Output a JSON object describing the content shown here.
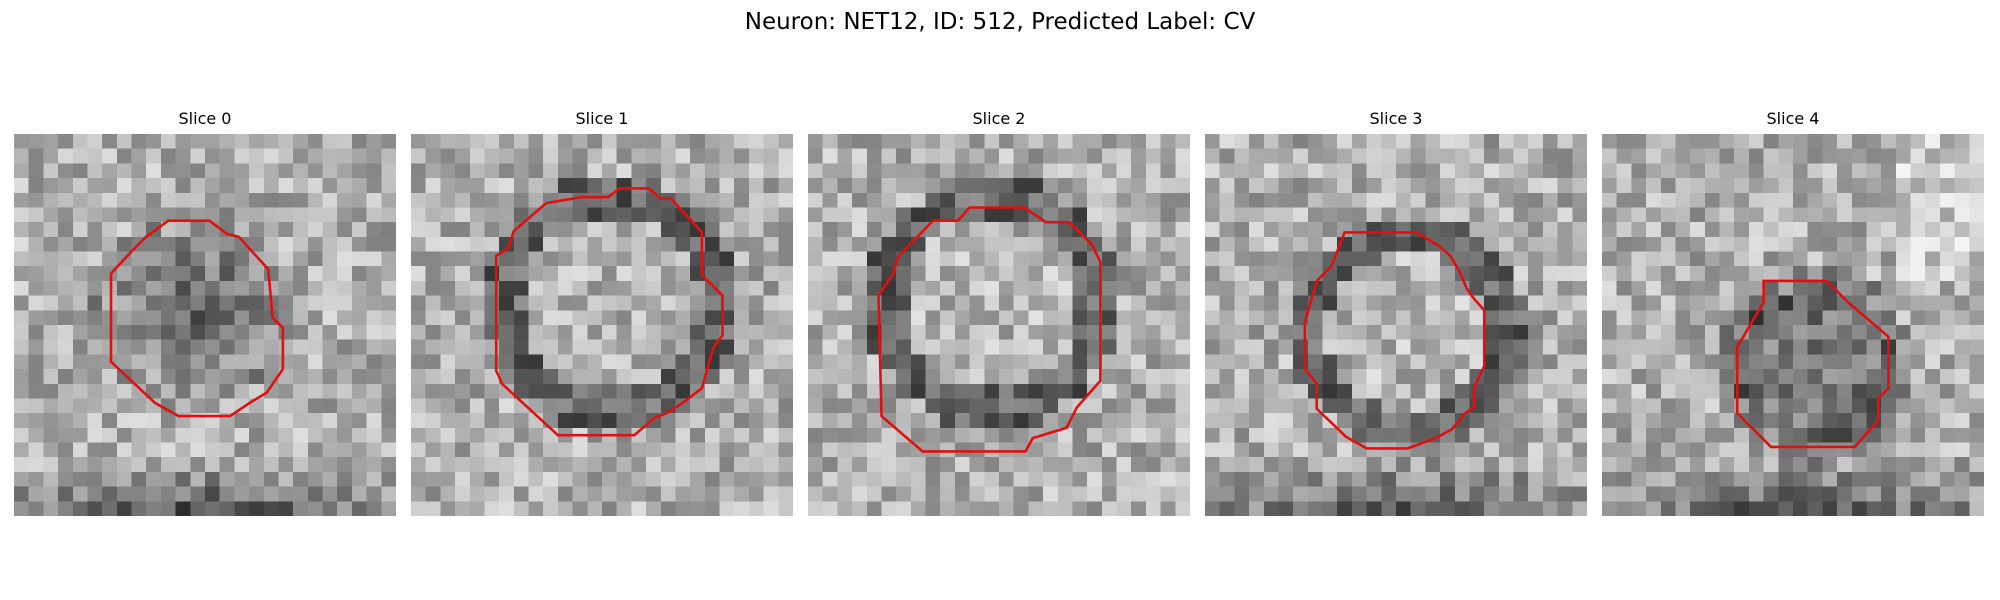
{
  "figure": {
    "title": "Neuron: NET12, ID: 512, Predicted Label: CV"
  },
  "panels": [
    {
      "title": "Slice 0",
      "outline_color": "#e01010"
    },
    {
      "title": "Slice 1",
      "outline_color": "#e01010"
    },
    {
      "title": "Slice 2",
      "outline_color": "#e01010"
    },
    {
      "title": "Slice 3",
      "outline_color": "#e01010"
    },
    {
      "title": "Slice 4",
      "outline_color": "#e01010"
    }
  ]
}
